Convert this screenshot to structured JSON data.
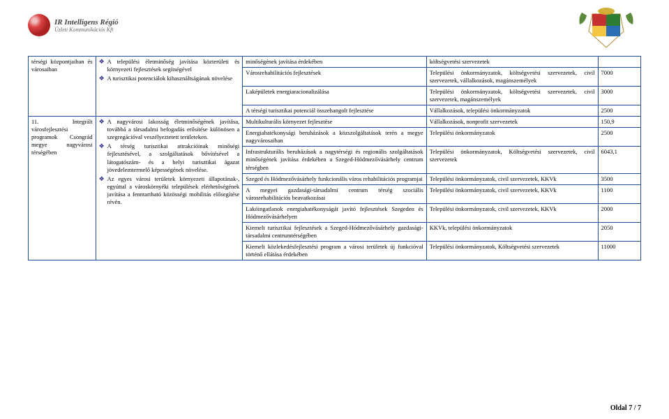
{
  "logo": {
    "line1": "IR Intelligens Régió",
    "line2": "Üzleti Kommunikációs Kft"
  },
  "footer": "Oldal 7 / 7",
  "colA1": "térségi központjaiban és városaiban",
  "colA2": "11. Integrált városfejlesztési programok Csongrád megye nagyvárosi térségében",
  "b1_bullets": [
    "A települési életminőség javítása közterületi és környezeti fejlesztések segítségével",
    "A turisztikai potenciálok kihasználtságának növelése"
  ],
  "b2_bullets": [
    "A nagyvárosi lakosság életminőségének javítása, továbbá a társadalmi befogadás erősítése különösen a szegregációval veszélyeztetett területeken.",
    "A térség turisztikai attrakcióinak minőségi fejlesztésével, a szolgáltatások bővítésével a látogatószám- és a helyi turisztikai ágazat jövedelemtermelő képességének növelése.",
    "Az egyes városi területek környezeti állapotának-, egyúttal a városkörnyéki települések elérhetőségének javítása a fenntartható közösségi mobilitás elősegítése révén."
  ],
  "rows": [
    {
      "c": "minőségének javítása érdekében",
      "d": "költségvetési szervezetek",
      "e": ""
    },
    {
      "c": "Városrehabilitációs fejlesztések",
      "d": "Települési önkormányzatok, költségvetési szervezetek, civil szervezetek, vállalkozások, magánszemélyek",
      "e": "7000"
    },
    {
      "c": "Laképületek energiaracionalizálása",
      "d": "Települési önkormányzatok, költségvetési szervezetek, civil szervezetek, magánszemélyek",
      "e": "3000"
    },
    {
      "c": "A térségi turisztikai potenciál összehangolt fejlesztése",
      "d": "Vállalkozások, települési önkormányzatok",
      "e": "2500"
    },
    {
      "c": "Multikulturális környezet fejlesztése",
      "d": "Vállalkozások, nonprofit szervezetek",
      "e": "150,9"
    },
    {
      "c": "Energiahatékonysági beruházások a közszolgáltatások terén a megye nagyvárosaiban",
      "d": "Települési önkormányzatok",
      "e": "2500"
    },
    {
      "c": "Infrastrukturális beruházások a nagytérségi és regionális szolgáltatások minőségének javítása érdekében a Szeged-Hódmezővásárhely centrum térségben",
      "d": "Települési önkormányzatok, Költségvetési szervezetek, civil szervezetek",
      "e": "6043,1"
    },
    {
      "c": "Szeged és Hódmezővásárhely funkcionális város rehabilitációs programjai",
      "d": "Települési önkormányzatok, civil szervezetek, KKVk",
      "e": "3500"
    },
    {
      "c": "A megyei gazdasági-társadalmi centrum térség szociális városrehabilitációs beavatkozásai",
      "d": "Települési önkormányzatok, civil szervezetek, KKVk",
      "e": "1100"
    },
    {
      "c": "Lakóingatlanok energiahatékonyságát javító fejlesztések Szegeden és Hódmezővásárhelyen",
      "d": "Települési önkormányzatok, civil szervezetek, KKVk",
      "e": "2000"
    },
    {
      "c": "Kiemelt turisztikai fejlesztések a Szeged-Hódmezővásárhely gazdasági-társadalmi centrumtérségében",
      "d": "KKVk, települési önkormányzatok",
      "e": "2050"
    },
    {
      "c": "Kiemelt közlekedésfejlesztési program a városi területek új funkcióval történő ellátása érdekében",
      "d": "Települési önkormányzatok, Költségvetési szervezetek",
      "e": "11000"
    }
  ]
}
